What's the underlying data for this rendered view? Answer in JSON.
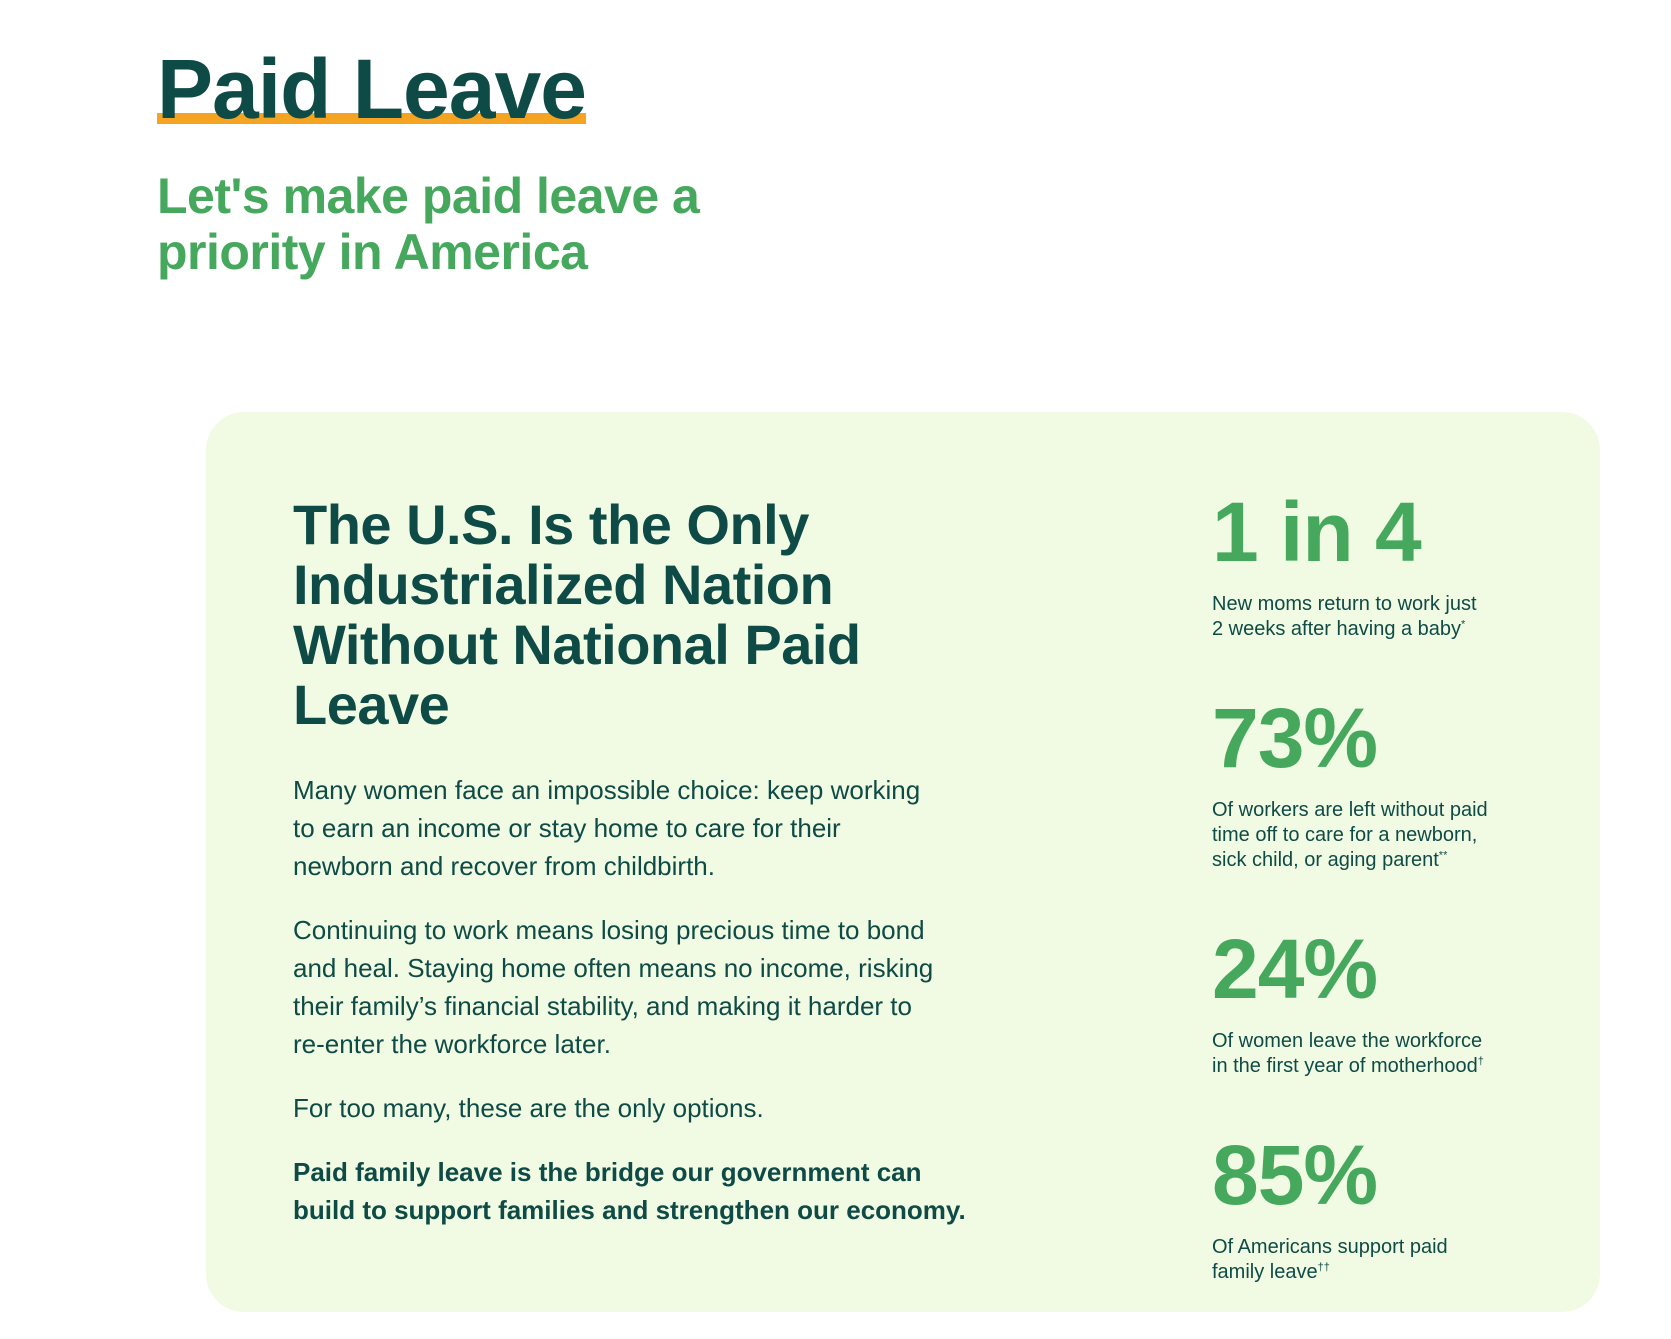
{
  "hero": {
    "title": "Paid Leave",
    "subtitle_line1": "Let's make paid leave a",
    "subtitle_line2": "priority in America"
  },
  "section": {
    "heading_line1": "The U.S. Is the Only",
    "heading_line2": "Industrialized Nation",
    "heading_line3": "Without National Paid",
    "heading_line4": "Leave",
    "paragraph1_line1": "Many women face an impossible choice: keep working",
    "paragraph1_line2": "to earn an income or stay home to care for their",
    "paragraph1_line3": "newborn and recover from childbirth.",
    "paragraph2_line1": "Continuing to work means losing precious time to bond",
    "paragraph2_line2": "and heal. Staying home often means no income, risking",
    "paragraph2_line3": "their family’s financial stability, and making it harder to",
    "paragraph2_line4": "re-enter the workforce later.",
    "paragraph3": "For too many, these are the only options.",
    "paragraph4_line1": "Paid family leave is the bridge our government can",
    "paragraph4_line2": "build to support families and strengthen our economy."
  },
  "stats": [
    {
      "value": "1 in 4",
      "caption_line1": "New moms return to work just",
      "caption_line2": "2 weeks after having a baby",
      "footnote": "*"
    },
    {
      "value": "73%",
      "caption_line1": "Of workers are left without paid",
      "caption_line2": "time off to care for a newborn,",
      "caption_line3": "sick child, or aging parent",
      "footnote": "**"
    },
    {
      "value": "24%",
      "caption_line1": "Of women leave the workforce",
      "caption_line2": "in the first year of motherhood",
      "footnote": "†"
    },
    {
      "value": "85%",
      "caption_line1": "Of Americans support paid",
      "caption_line2": "family leave",
      "footnote": "††"
    }
  ],
  "colors": {
    "title": "#0f4b46",
    "accent_green": "#46a85d",
    "underline": "#f4a421",
    "card_background": "#f1fbe3"
  }
}
